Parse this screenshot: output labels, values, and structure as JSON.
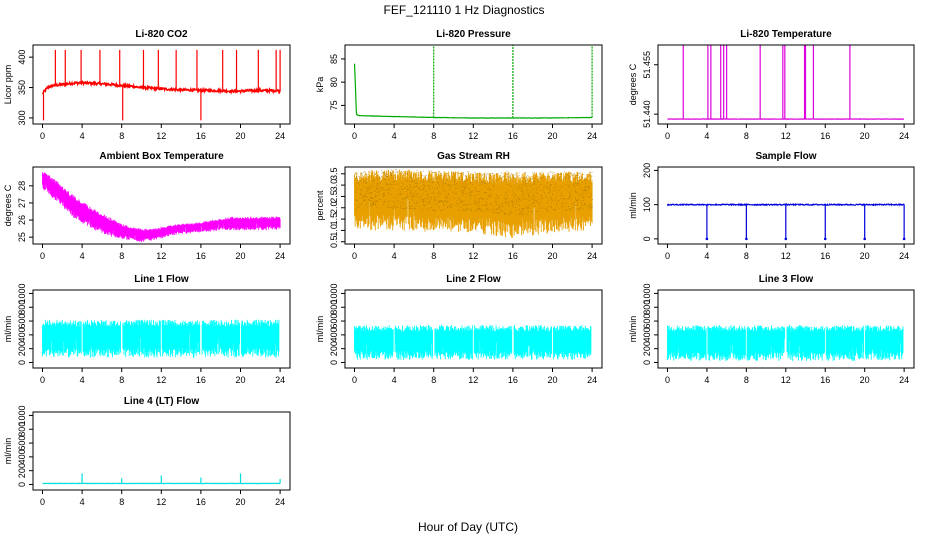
{
  "figure": {
    "title": "FEF_121110  1 Hz Diagnostics",
    "xlabel": "Hour of Day (UTC)"
  },
  "chart_data": [
    {
      "id": "co2",
      "type": "line",
      "title": "Li-820 CO2",
      "ylabel": "Licor ppm",
      "color": "#ff0000",
      "xlim": [
        -0.96,
        25
      ],
      "ylim": [
        290,
        420
      ],
      "xticks": [
        0,
        4,
        8,
        12,
        16,
        20,
        24
      ],
      "yticks": [
        300,
        350,
        400
      ],
      "x": [
        0,
        0.5,
        1,
        2,
        3,
        4,
        5,
        6,
        7,
        8,
        9,
        10,
        11,
        12,
        13,
        14,
        15,
        16,
        17,
        18,
        19,
        20,
        21,
        22,
        23,
        24
      ],
      "values": [
        340,
        350,
        353,
        355,
        357,
        358,
        357,
        356,
        355,
        353,
        352,
        350,
        349,
        348,
        347,
        346,
        346,
        345,
        345,
        345,
        344,
        344,
        345,
        345,
        345,
        345
      ],
      "spikes_up": [
        1.3,
        2.3,
        3.9,
        5.8,
        7.8,
        10.2,
        11.7,
        13.5,
        15.6,
        18.2,
        19.6,
        21.8,
        23.6,
        24.0
      ],
      "spike_up_value": 412,
      "spikes_down": [
        0.1,
        8.1,
        16.0
      ],
      "spike_down_value": 296
    },
    {
      "id": "pressure",
      "type": "line",
      "title": "Li-820 Pressure",
      "ylabel": "kPa",
      "color": "#00aa00",
      "xlim": [
        -0.96,
        25
      ],
      "ylim": [
        71,
        88
      ],
      "xticks": [
        0,
        4,
        8,
        12,
        16,
        20,
        24
      ],
      "yticks": [
        75,
        80,
        85
      ],
      "x": [
        0,
        0.2,
        0.5,
        4,
        8,
        12,
        16,
        20,
        24
      ],
      "values": [
        84,
        73,
        72.8,
        72.6,
        72.4,
        72.3,
        72.3,
        72.3,
        72.4
      ],
      "spikes_up": [
        8.0,
        16.0,
        24.0
      ],
      "spike_up_value": 88
    },
    {
      "id": "licor-temp",
      "type": "line",
      "title": "Li-820 Temperature",
      "ylabel": "degrees C",
      "color": "#dd00dd",
      "xlim": [
        -0.96,
        25
      ],
      "ylim": [
        51.437,
        51.461
      ],
      "xticks": [
        0,
        4,
        8,
        12,
        16,
        20,
        24
      ],
      "yticks": [
        51.44,
        51.455
      ],
      "yticks_extra": [
        "51.440",
        "51.455"
      ],
      "x": [
        0,
        24
      ],
      "values": [
        51.4385,
        51.4385
      ],
      "spikes_up": [
        1.6,
        4.1,
        4.4,
        5.4,
        5.7,
        6.0,
        9.4,
        11.7,
        11.9,
        13.9,
        14.0,
        14.8,
        18.5
      ],
      "spike_up_value": 51.461
    },
    {
      "id": "ambient-temp",
      "type": "area",
      "title": "Ambient Box Temperature",
      "ylabel": "degrees C",
      "color": "#ff00ff",
      "xlim": [
        -0.96,
        25
      ],
      "ylim": [
        24.6,
        29.1
      ],
      "xticks": [
        0,
        4,
        8,
        12,
        16,
        20,
        24
      ],
      "yticks": [
        25,
        26,
        27,
        28
      ],
      "x": [
        0,
        1,
        2,
        3,
        4,
        5,
        6,
        7,
        8,
        9,
        10,
        11,
        12,
        13,
        14,
        15,
        16,
        17,
        18,
        19,
        20,
        21,
        22,
        23,
        24
      ],
      "upper": [
        28.9,
        28.5,
        28.0,
        27.5,
        27.1,
        26.7,
        26.4,
        26.1,
        25.8,
        25.6,
        25.5,
        25.5,
        25.6,
        25.7,
        25.8,
        25.8,
        25.9,
        26.0,
        26.1,
        26.2,
        26.2,
        26.2,
        26.2,
        26.2,
        26.2
      ],
      "lower": [
        27.8,
        27.3,
        26.8,
        26.2,
        25.8,
        25.5,
        25.2,
        25.0,
        24.9,
        24.8,
        24.7,
        24.8,
        24.9,
        25.1,
        25.2,
        25.2,
        25.3,
        25.3,
        25.4,
        25.4,
        25.4,
        25.4,
        25.4,
        25.4,
        25.4
      ]
    },
    {
      "id": "gas-rh",
      "type": "area",
      "title": "Gas Stream RH",
      "ylabel": "percent",
      "color": "#e8a000",
      "xlim": [
        -0.96,
        25
      ],
      "ylim": [
        0.4,
        3.8
      ],
      "xticks": [
        0,
        4,
        8,
        12,
        16,
        20,
        24
      ],
      "yticks": [
        0.5,
        1.0,
        1.5,
        2.0,
        2.5,
        3.0,
        3.5
      ],
      "ytick_labels": [
        "0.5",
        "1.0",
        "1.5",
        "2.0",
        "2.5",
        "3.0",
        "3.5"
      ],
      "x": [
        0,
        4,
        8,
        12,
        16,
        20,
        24
      ],
      "upper": [
        3.6,
        3.7,
        3.65,
        3.6,
        3.6,
        3.6,
        3.6
      ],
      "lower": [
        1.0,
        1.0,
        0.9,
        0.9,
        0.6,
        0.9,
        1.0
      ]
    },
    {
      "id": "sample-flow",
      "type": "line",
      "title": "Sample Flow",
      "ylabel": "ml/min",
      "color": "#0000dd",
      "xlim": [
        -0.96,
        25
      ],
      "ylim": [
        -15,
        210
      ],
      "xticks": [
        0,
        4,
        8,
        12,
        16,
        20,
        24
      ],
      "yticks": [
        0,
        100,
        200
      ],
      "x": [
        0,
        24
      ],
      "values": [
        100,
        100
      ],
      "spikes_down": [
        4.0,
        8.0,
        12.0,
        16.0,
        20.0,
        24.0
      ],
      "spike_down_value": 0
    },
    {
      "id": "line1-flow",
      "type": "area",
      "title": "Line 1 Flow",
      "ylabel": "ml/min",
      "color": "#00ffff",
      "xlim": [
        -0.96,
        25
      ],
      "ylim": [
        -80,
        1050
      ],
      "xticks": [
        0,
        4,
        8,
        12,
        16,
        20,
        24
      ],
      "yticks": [
        0,
        200,
        400,
        600,
        800,
        1000
      ],
      "x": [
        0,
        24
      ],
      "upper": [
        620,
        620
      ],
      "lower": [
        70,
        70
      ],
      "gaps": [
        4.0,
        8.0,
        12.0,
        16.0,
        20.0,
        24.0
      ]
    },
    {
      "id": "line2-flow",
      "type": "area",
      "title": "Line 2 Flow",
      "ylabel": "ml/min",
      "color": "#00ffff",
      "xlim": [
        -0.96,
        25
      ],
      "ylim": [
        -80,
        1050
      ],
      "xticks": [
        0,
        4,
        8,
        12,
        16,
        20,
        24
      ],
      "yticks": [
        0,
        200,
        400,
        600,
        800,
        1000
      ],
      "x": [
        0,
        24
      ],
      "upper": [
        540,
        540
      ],
      "lower": [
        40,
        40
      ],
      "gaps": [
        4.0,
        8.0,
        12.0,
        16.0,
        20.0,
        24.0
      ]
    },
    {
      "id": "line3-flow",
      "type": "area",
      "title": "Line 3 Flow",
      "ylabel": "ml/min",
      "color": "#00ffff",
      "xlim": [
        -0.96,
        25
      ],
      "ylim": [
        -80,
        1050
      ],
      "xticks": [
        0,
        4,
        8,
        12,
        16,
        20,
        24
      ],
      "yticks": [
        0,
        200,
        400,
        600,
        800,
        1000
      ],
      "x": [
        0,
        24
      ],
      "upper": [
        540,
        540
      ],
      "lower": [
        20,
        20
      ],
      "gaps": [
        4.0,
        8.0,
        12.0,
        16.0,
        20.0,
        24.0
      ]
    },
    {
      "id": "line4-flow",
      "type": "line",
      "title": "Line 4 (LT) Flow",
      "ylabel": "ml/min",
      "color": "#00dddd",
      "xlim": [
        -0.96,
        25
      ],
      "ylim": [
        -80,
        1050
      ],
      "xticks": [
        0,
        4,
        8,
        12,
        16,
        20,
        24
      ],
      "yticks": [
        0,
        200,
        400,
        600,
        800,
        1000
      ],
      "x": [
        0,
        24
      ],
      "values": [
        15,
        15
      ],
      "spikes_up": [
        4.0,
        8.0,
        12.0,
        16.0,
        20.0,
        24.0
      ],
      "spike_up_values": [
        160,
        90,
        130,
        100,
        160,
        80
      ]
    }
  ]
}
